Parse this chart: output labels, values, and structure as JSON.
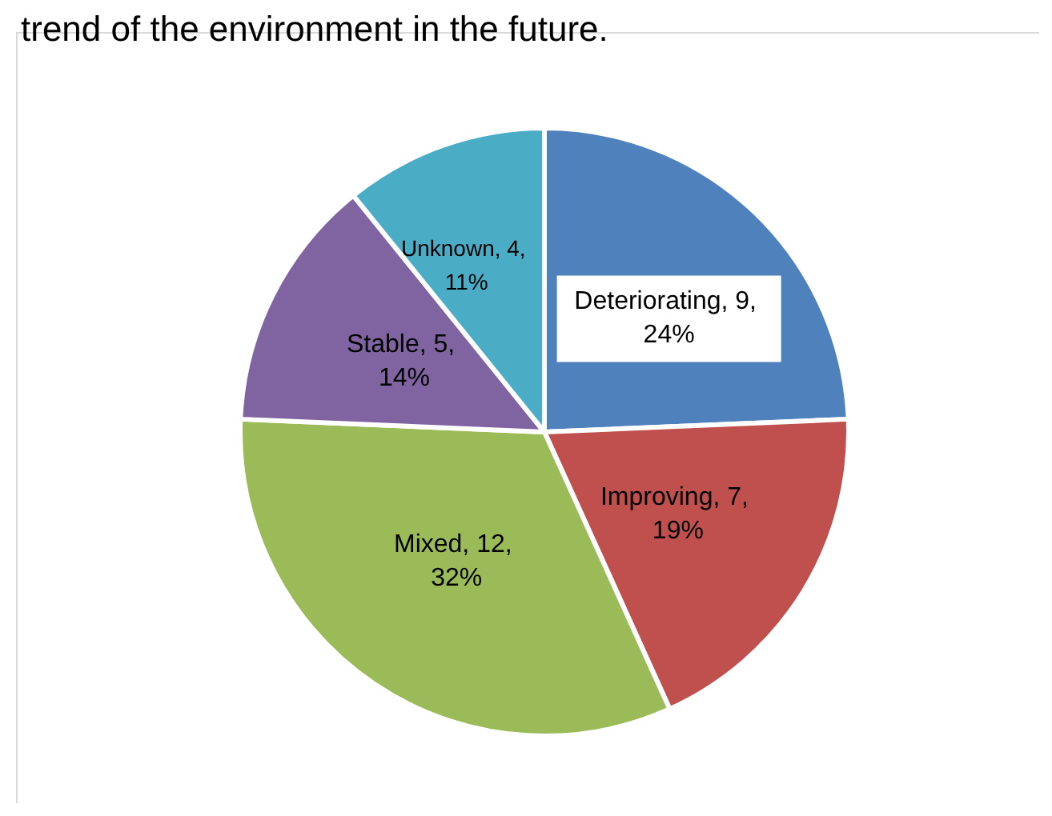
{
  "chart_data": {
    "type": "pie",
    "title": "trend of the environment in the future.",
    "categories": [
      "Deteriorating",
      "Improving",
      "Mixed",
      "Stable",
      "Unknown"
    ],
    "values": [
      9,
      7,
      12,
      5,
      4
    ],
    "colors": [
      "#4f81bd",
      "#c0504d",
      "#9bbb59",
      "#8064a2",
      "#4bacc6"
    ],
    "value_labels": [
      "9, 24%",
      "7, 19%",
      "12, 32%",
      "5, 14%",
      "4, 11%"
    ],
    "legend": false
  }
}
